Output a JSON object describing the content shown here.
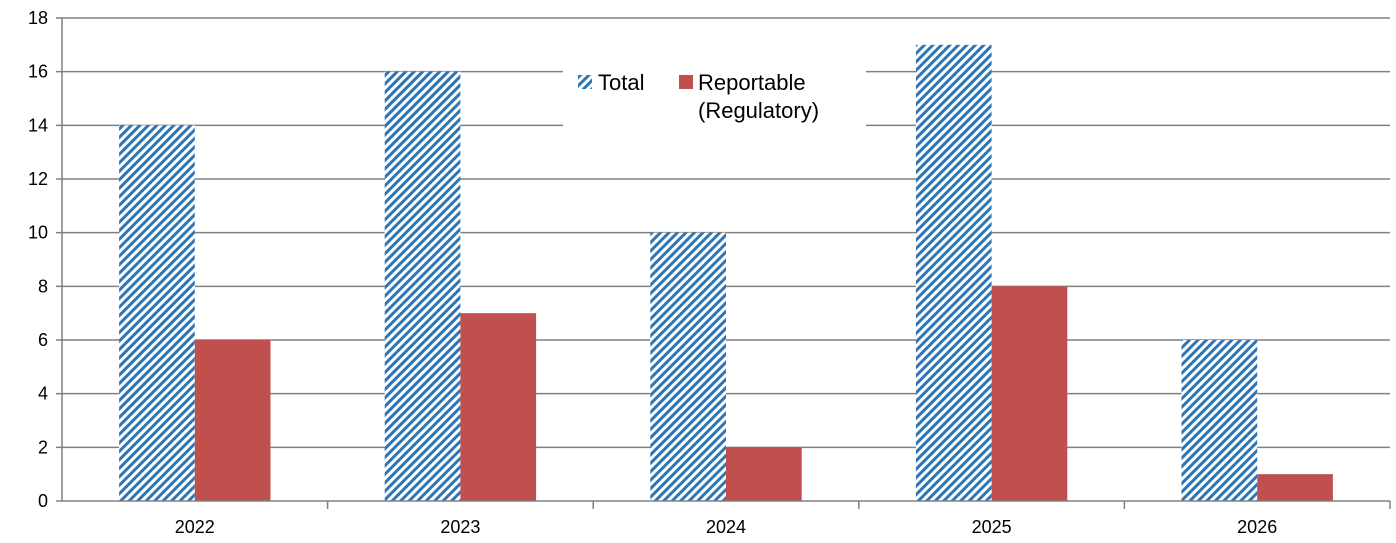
{
  "chart_data": {
    "type": "bar",
    "categories": [
      "2022",
      "2023",
      "2024",
      "2025",
      "2026"
    ],
    "series": [
      {
        "name": "Total",
        "values": [
          14,
          16,
          10,
          17,
          6
        ],
        "color": "#2E75B6",
        "pattern": "diagonal-hatch"
      },
      {
        "name": "Reportable (Regulatory)",
        "values": [
          6,
          7,
          2,
          8,
          1
        ],
        "color": "#C0504D",
        "pattern": "solid"
      }
    ],
    "ylim": [
      0,
      18
    ],
    "yticks": [
      0,
      2,
      4,
      6,
      8,
      10,
      12,
      14,
      16,
      18
    ],
    "grid": true,
    "legend_position": "top-center",
    "title": "",
    "xlabel": "",
    "ylabel": ""
  }
}
